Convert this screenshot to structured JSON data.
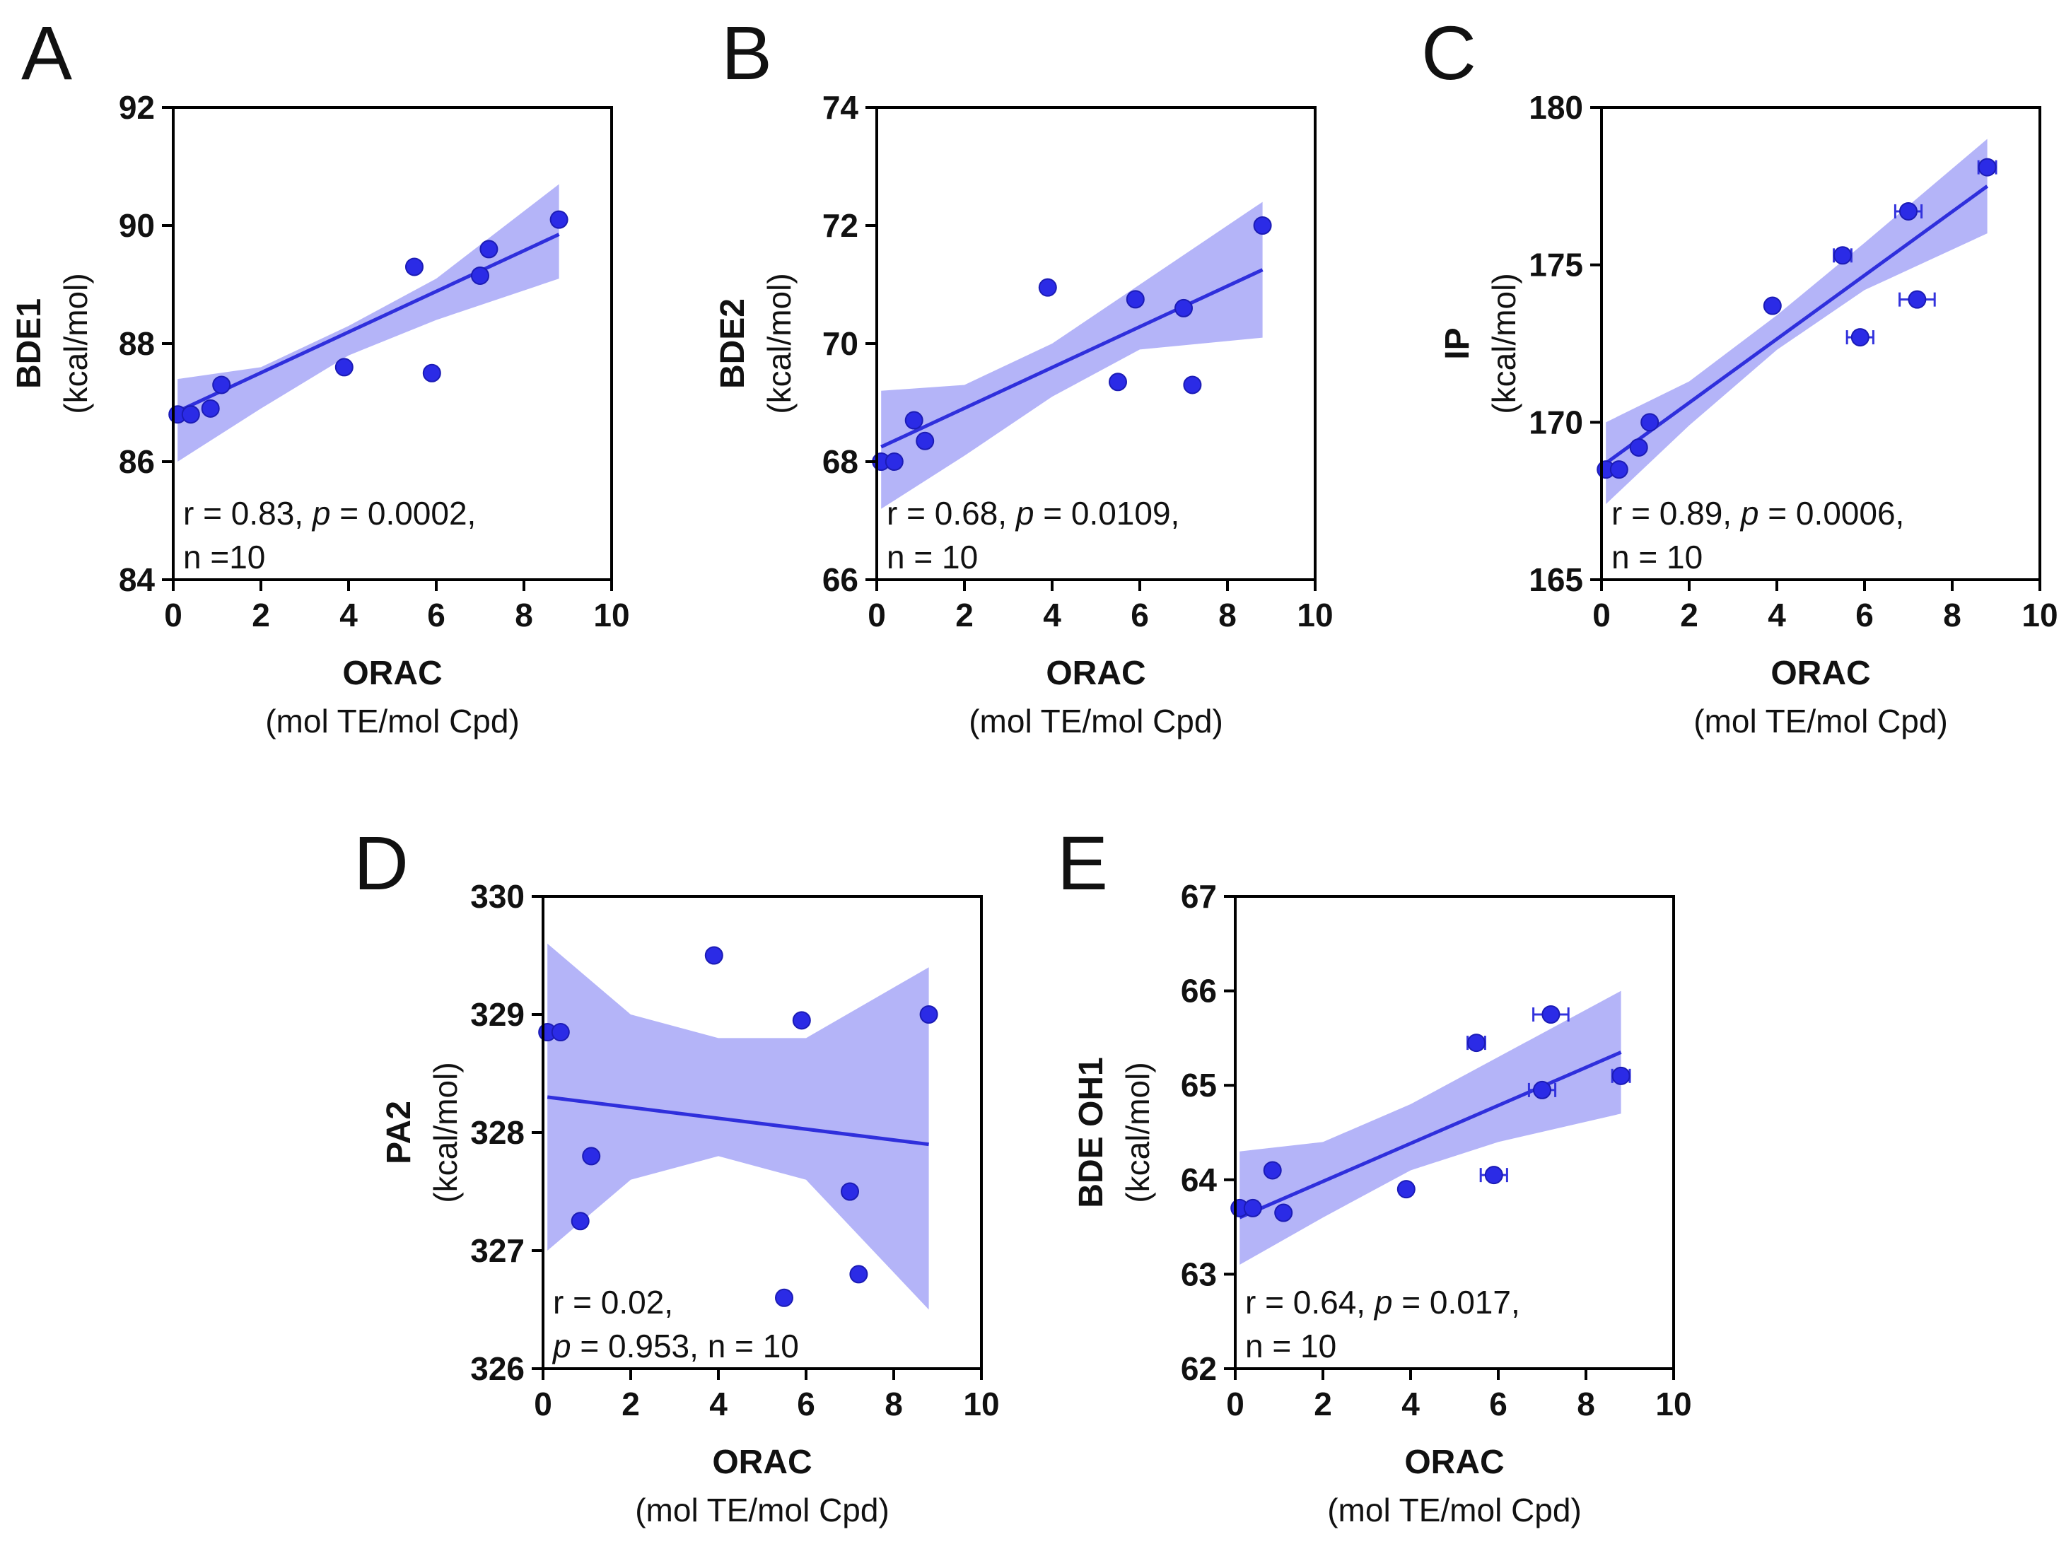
{
  "colors": {
    "point": "#2b2be6",
    "fit_line": "#2f2fdc",
    "band": "#a7a7f7",
    "axis": "#000000"
  },
  "chart_data": [
    {
      "type": "scatter",
      "panel": "A",
      "xlabel": "ORAC",
      "xlabel_units": "(mol TE/mol Cpd)",
      "ylabel": "BDE1",
      "ylabel_units": "(kcal/mol)",
      "xlim": [
        0,
        10
      ],
      "ylim": [
        84,
        92
      ],
      "xticks": [
        0,
        2,
        4,
        6,
        8,
        10
      ],
      "yticks": [
        84,
        86,
        88,
        90,
        92
      ],
      "points": [
        {
          "x": 0.1,
          "y": 86.8
        },
        {
          "x": 0.4,
          "y": 86.8
        },
        {
          "x": 0.85,
          "y": 86.9
        },
        {
          "x": 1.1,
          "y": 87.3
        },
        {
          "x": 3.9,
          "y": 87.6
        },
        {
          "x": 5.5,
          "y": 89.3
        },
        {
          "x": 5.9,
          "y": 87.5
        },
        {
          "x": 7.0,
          "y": 89.15
        },
        {
          "x": 7.2,
          "y": 89.6
        },
        {
          "x": 8.8,
          "y": 90.1
        }
      ],
      "fit": {
        "x0": 0.1,
        "y0": 86.85,
        "x1": 8.8,
        "y1": 89.85
      },
      "ci_lower": [
        [
          0.1,
          86.0
        ],
        [
          2.0,
          86.9
        ],
        [
          4.0,
          87.8
        ],
        [
          6.0,
          88.4
        ],
        [
          8.8,
          89.1
        ]
      ],
      "ci_upper": [
        [
          0.1,
          87.4
        ],
        [
          2.0,
          87.6
        ],
        [
          4.0,
          88.3
        ],
        [
          6.0,
          89.1
        ],
        [
          8.8,
          90.7
        ]
      ],
      "stats": {
        "line1": "r = 0.83, ",
        "p_symbol": "p",
        "line1_rest": " = 0.0002,",
        "line2": "n =10"
      }
    },
    {
      "type": "scatter",
      "panel": "B",
      "xlabel": "ORAC",
      "xlabel_units": "(mol TE/mol Cpd)",
      "ylabel": "BDE2",
      "ylabel_units": "(kcal/mol)",
      "xlim": [
        0,
        10
      ],
      "ylim": [
        66,
        74
      ],
      "xticks": [
        0,
        2,
        4,
        6,
        8,
        10
      ],
      "yticks": [
        66,
        68,
        70,
        72,
        74
      ],
      "points": [
        {
          "x": 0.1,
          "y": 68.0
        },
        {
          "x": 0.4,
          "y": 68.0
        },
        {
          "x": 0.85,
          "y": 68.7
        },
        {
          "x": 1.1,
          "y": 68.35
        },
        {
          "x": 3.9,
          "y": 70.95
        },
        {
          "x": 5.5,
          "y": 69.35
        },
        {
          "x": 5.9,
          "y": 70.75
        },
        {
          "x": 7.0,
          "y": 70.6
        },
        {
          "x": 7.2,
          "y": 69.3
        },
        {
          "x": 8.8,
          "y": 72.0
        }
      ],
      "fit": {
        "x0": 0.1,
        "y0": 68.25,
        "x1": 8.8,
        "y1": 71.25
      },
      "ci_lower": [
        [
          0.1,
          67.2
        ],
        [
          2.0,
          68.1
        ],
        [
          4.0,
          69.1
        ],
        [
          6.0,
          69.9
        ],
        [
          8.8,
          70.1
        ]
      ],
      "ci_upper": [
        [
          0.1,
          69.2
        ],
        [
          2.0,
          69.3
        ],
        [
          4.0,
          70.0
        ],
        [
          6.0,
          71.0
        ],
        [
          8.8,
          72.4
        ]
      ],
      "stats": {
        "line1": "r = 0.68, ",
        "p_symbol": "p",
        "line1_rest": " = 0.0109,",
        "line2": "n = 10"
      }
    },
    {
      "type": "scatter",
      "panel": "C",
      "xlabel": "ORAC",
      "xlabel_units": "(mol TE/mol Cpd)",
      "ylabel": "IP",
      "ylabel_units": "(kcal/mol)",
      "xlim": [
        0,
        10
      ],
      "ylim": [
        165,
        180
      ],
      "xticks": [
        0,
        2,
        4,
        6,
        8,
        10
      ],
      "yticks": [
        165,
        170,
        175,
        180
      ],
      "points": [
        {
          "x": 0.1,
          "y": 168.5
        },
        {
          "x": 0.4,
          "y": 168.5
        },
        {
          "x": 0.85,
          "y": 169.2
        },
        {
          "x": 1.1,
          "y": 170.0
        },
        {
          "x": 3.9,
          "y": 173.7
        },
        {
          "x": 5.5,
          "y": 175.3,
          "xerr": 0.2
        },
        {
          "x": 5.9,
          "y": 172.7,
          "xerr": 0.3
        },
        {
          "x": 7.0,
          "y": 176.7,
          "xerr": 0.3
        },
        {
          "x": 7.2,
          "y": 173.9,
          "xerr": 0.4
        },
        {
          "x": 8.8,
          "y": 178.1,
          "xerr": 0.2
        }
      ],
      "fit": {
        "x0": 0.1,
        "y0": 168.7,
        "x1": 8.8,
        "y1": 177.5
      },
      "ci_lower": [
        [
          0.1,
          167.4
        ],
        [
          2.0,
          169.9
        ],
        [
          4.0,
          172.3
        ],
        [
          6.0,
          174.2
        ],
        [
          8.8,
          176.0
        ]
      ],
      "ci_upper": [
        [
          0.1,
          170.0
        ],
        [
          2.0,
          171.3
        ],
        [
          4.0,
          173.4
        ],
        [
          6.0,
          175.7
        ],
        [
          8.8,
          179.0
        ]
      ],
      "stats": {
        "line1": "r = 0.89, ",
        "p_symbol": "p",
        "line1_rest": " = 0.0006,",
        "line2": "n = 10"
      }
    },
    {
      "type": "scatter",
      "panel": "D",
      "xlabel": "ORAC",
      "xlabel_units": "(mol TE/mol Cpd)",
      "ylabel": "PA2",
      "ylabel_units": "(kcal/mol)",
      "xlim": [
        0,
        10
      ],
      "ylim": [
        326,
        330
      ],
      "xticks": [
        0,
        2,
        4,
        6,
        8,
        10
      ],
      "yticks": [
        326,
        327,
        328,
        329,
        330
      ],
      "points": [
        {
          "x": 0.1,
          "y": 328.85
        },
        {
          "x": 0.4,
          "y": 328.85
        },
        {
          "x": 0.85,
          "y": 327.25
        },
        {
          "x": 1.1,
          "y": 327.8
        },
        {
          "x": 3.9,
          "y": 329.5
        },
        {
          "x": 5.5,
          "y": 326.6
        },
        {
          "x": 5.9,
          "y": 328.95
        },
        {
          "x": 7.0,
          "y": 327.5
        },
        {
          "x": 7.2,
          "y": 326.8
        },
        {
          "x": 8.8,
          "y": 329.0
        }
      ],
      "fit": {
        "x0": 0.1,
        "y0": 328.3,
        "x1": 8.8,
        "y1": 327.9
      },
      "ci_lower": [
        [
          0.1,
          327.0
        ],
        [
          2.0,
          327.6
        ],
        [
          4.0,
          327.8
        ],
        [
          6.0,
          327.6
        ],
        [
          8.8,
          326.5
        ]
      ],
      "ci_upper": [
        [
          0.1,
          329.6
        ],
        [
          2.0,
          329.0
        ],
        [
          4.0,
          328.8
        ],
        [
          6.0,
          328.8
        ],
        [
          8.8,
          329.4
        ]
      ],
      "stats": {
        "line1": "r = 0.02,",
        "p_symbol": "p",
        "line1_rest": "",
        "line2": " = 0.953, n = 10"
      }
    },
    {
      "type": "scatter",
      "panel": "E",
      "xlabel": "ORAC",
      "xlabel_units": "(mol TE/mol Cpd)",
      "ylabel": "BDE OH1",
      "ylabel_units": "(kcal/mol)",
      "xlim": [
        0,
        10
      ],
      "ylim": [
        62,
        67
      ],
      "xticks": [
        0,
        2,
        4,
        6,
        8,
        10
      ],
      "yticks": [
        62,
        63,
        64,
        65,
        66,
        67
      ],
      "points": [
        {
          "x": 0.1,
          "y": 63.7
        },
        {
          "x": 0.4,
          "y": 63.7
        },
        {
          "x": 0.85,
          "y": 64.1
        },
        {
          "x": 1.1,
          "y": 63.65
        },
        {
          "x": 3.9,
          "y": 63.9
        },
        {
          "x": 5.5,
          "y": 65.45,
          "xerr": 0.2
        },
        {
          "x": 5.9,
          "y": 64.05,
          "xerr": 0.3
        },
        {
          "x": 7.0,
          "y": 64.95,
          "xerr": 0.3
        },
        {
          "x": 7.2,
          "y": 65.75,
          "xerr": 0.4
        },
        {
          "x": 8.8,
          "y": 65.1,
          "xerr": 0.2
        }
      ],
      "fit": {
        "x0": 0.1,
        "y0": 63.6,
        "x1": 8.8,
        "y1": 65.35
      },
      "ci_lower": [
        [
          0.1,
          63.1
        ],
        [
          2.0,
          63.6
        ],
        [
          4.0,
          64.1
        ],
        [
          6.0,
          64.4
        ],
        [
          8.8,
          64.7
        ]
      ],
      "ci_upper": [
        [
          0.1,
          64.3
        ],
        [
          2.0,
          64.4
        ],
        [
          4.0,
          64.8
        ],
        [
          6.0,
          65.3
        ],
        [
          8.8,
          66.0
        ]
      ],
      "stats": {
        "line1": "r = 0.64, ",
        "p_symbol": "p",
        "line1_rest": " = 0.017,",
        "line2": "n = 10"
      }
    }
  ]
}
